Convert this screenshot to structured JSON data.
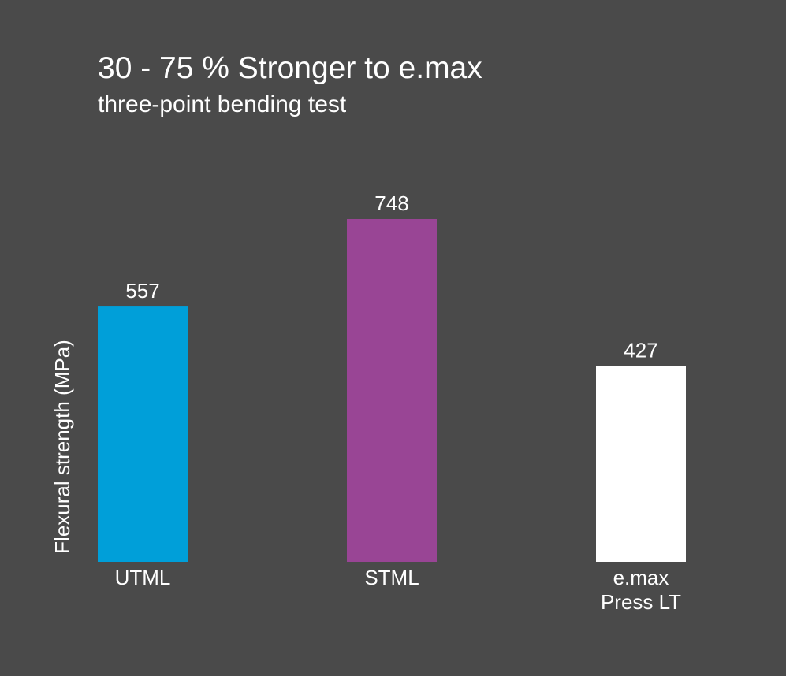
{
  "chart_data": {
    "type": "bar",
    "title": "30 - 75 % Stronger to e.max",
    "subtitle": "three-point bending test",
    "ylabel": "Flexural strength (MPa)",
    "xlabel": "",
    "categories": [
      [
        "UTML"
      ],
      [
        "STML"
      ],
      [
        "e.max",
        "Press LT"
      ]
    ],
    "values": [
      557,
      748,
      427
    ],
    "colors": [
      "#009fd9",
      "#994595",
      "#ffffff"
    ],
    "ylim": [
      0,
      748
    ],
    "grid": false,
    "legend": "none"
  }
}
